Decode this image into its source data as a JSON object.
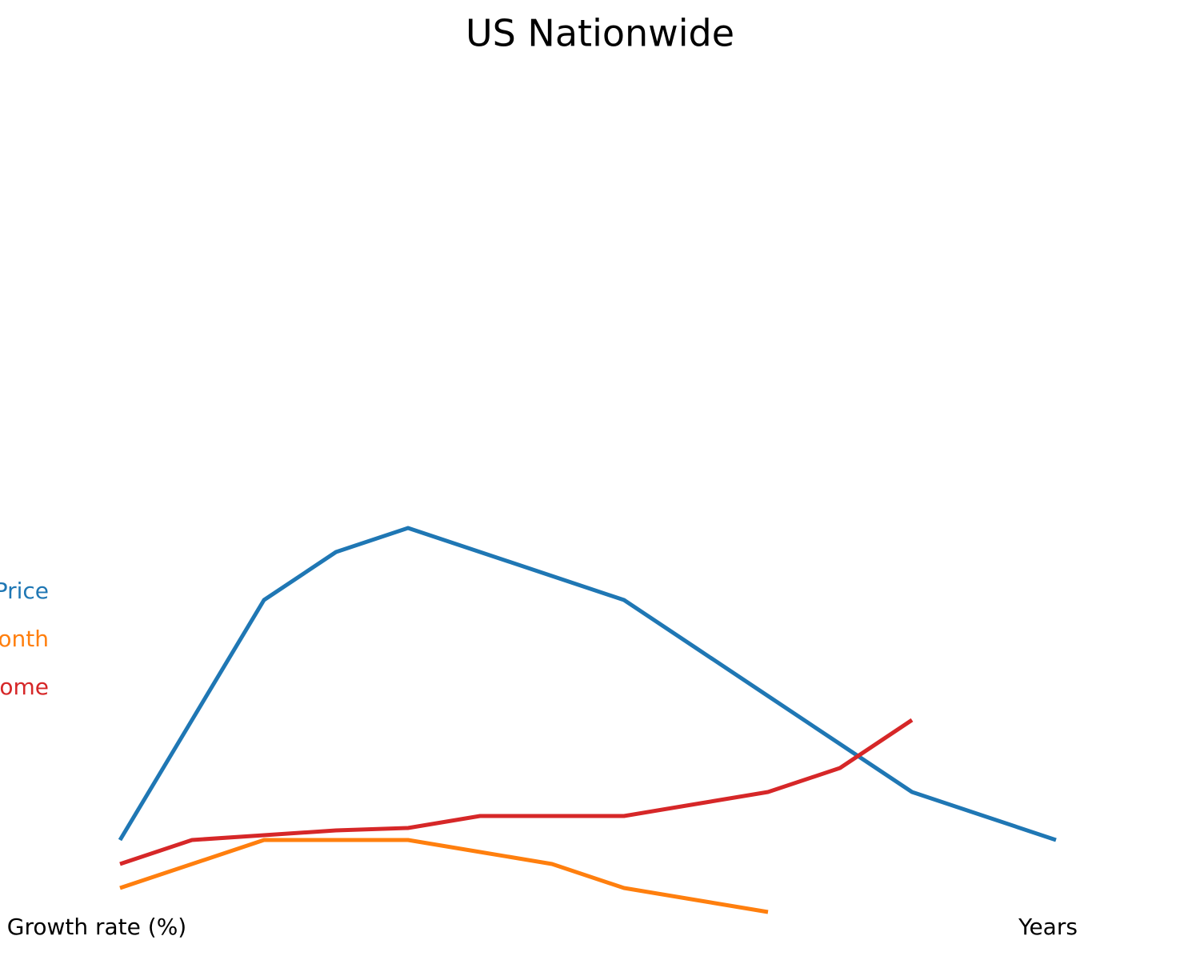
{
  "chart_data": {
    "type": "line",
    "title": "US Nationwide",
    "x_label": "Years",
    "y_label": "Growth rate (%)",
    "categories": [
      null,
      null,
      null,
      null,
      null,
      null,
      null,
      null,
      null,
      null,
      null,
      null,
      null,
      null
    ],
    "series": [
      {
        "name": "Price",
        "color": "#1f77b4",
        "values": [
          3,
          8,
          13,
          15,
          16,
          15,
          14,
          13,
          11,
          9,
          7,
          5,
          4,
          3
        ]
      },
      {
        "name": "onth",
        "color": "#ff7f0e",
        "values": [
          1,
          2,
          3,
          3,
          3,
          2.5,
          2,
          1,
          0.5,
          0,
          null,
          null,
          null,
          null
        ]
      },
      {
        "name": "ome",
        "color": "#d62728",
        "values": [
          2,
          3,
          3.2,
          3.4,
          3.5,
          4,
          4,
          4,
          4.5,
          5,
          6,
          8,
          null,
          null
        ]
      }
    ],
    "ylim": [
      0,
      38
    ],
    "grid": false
  }
}
